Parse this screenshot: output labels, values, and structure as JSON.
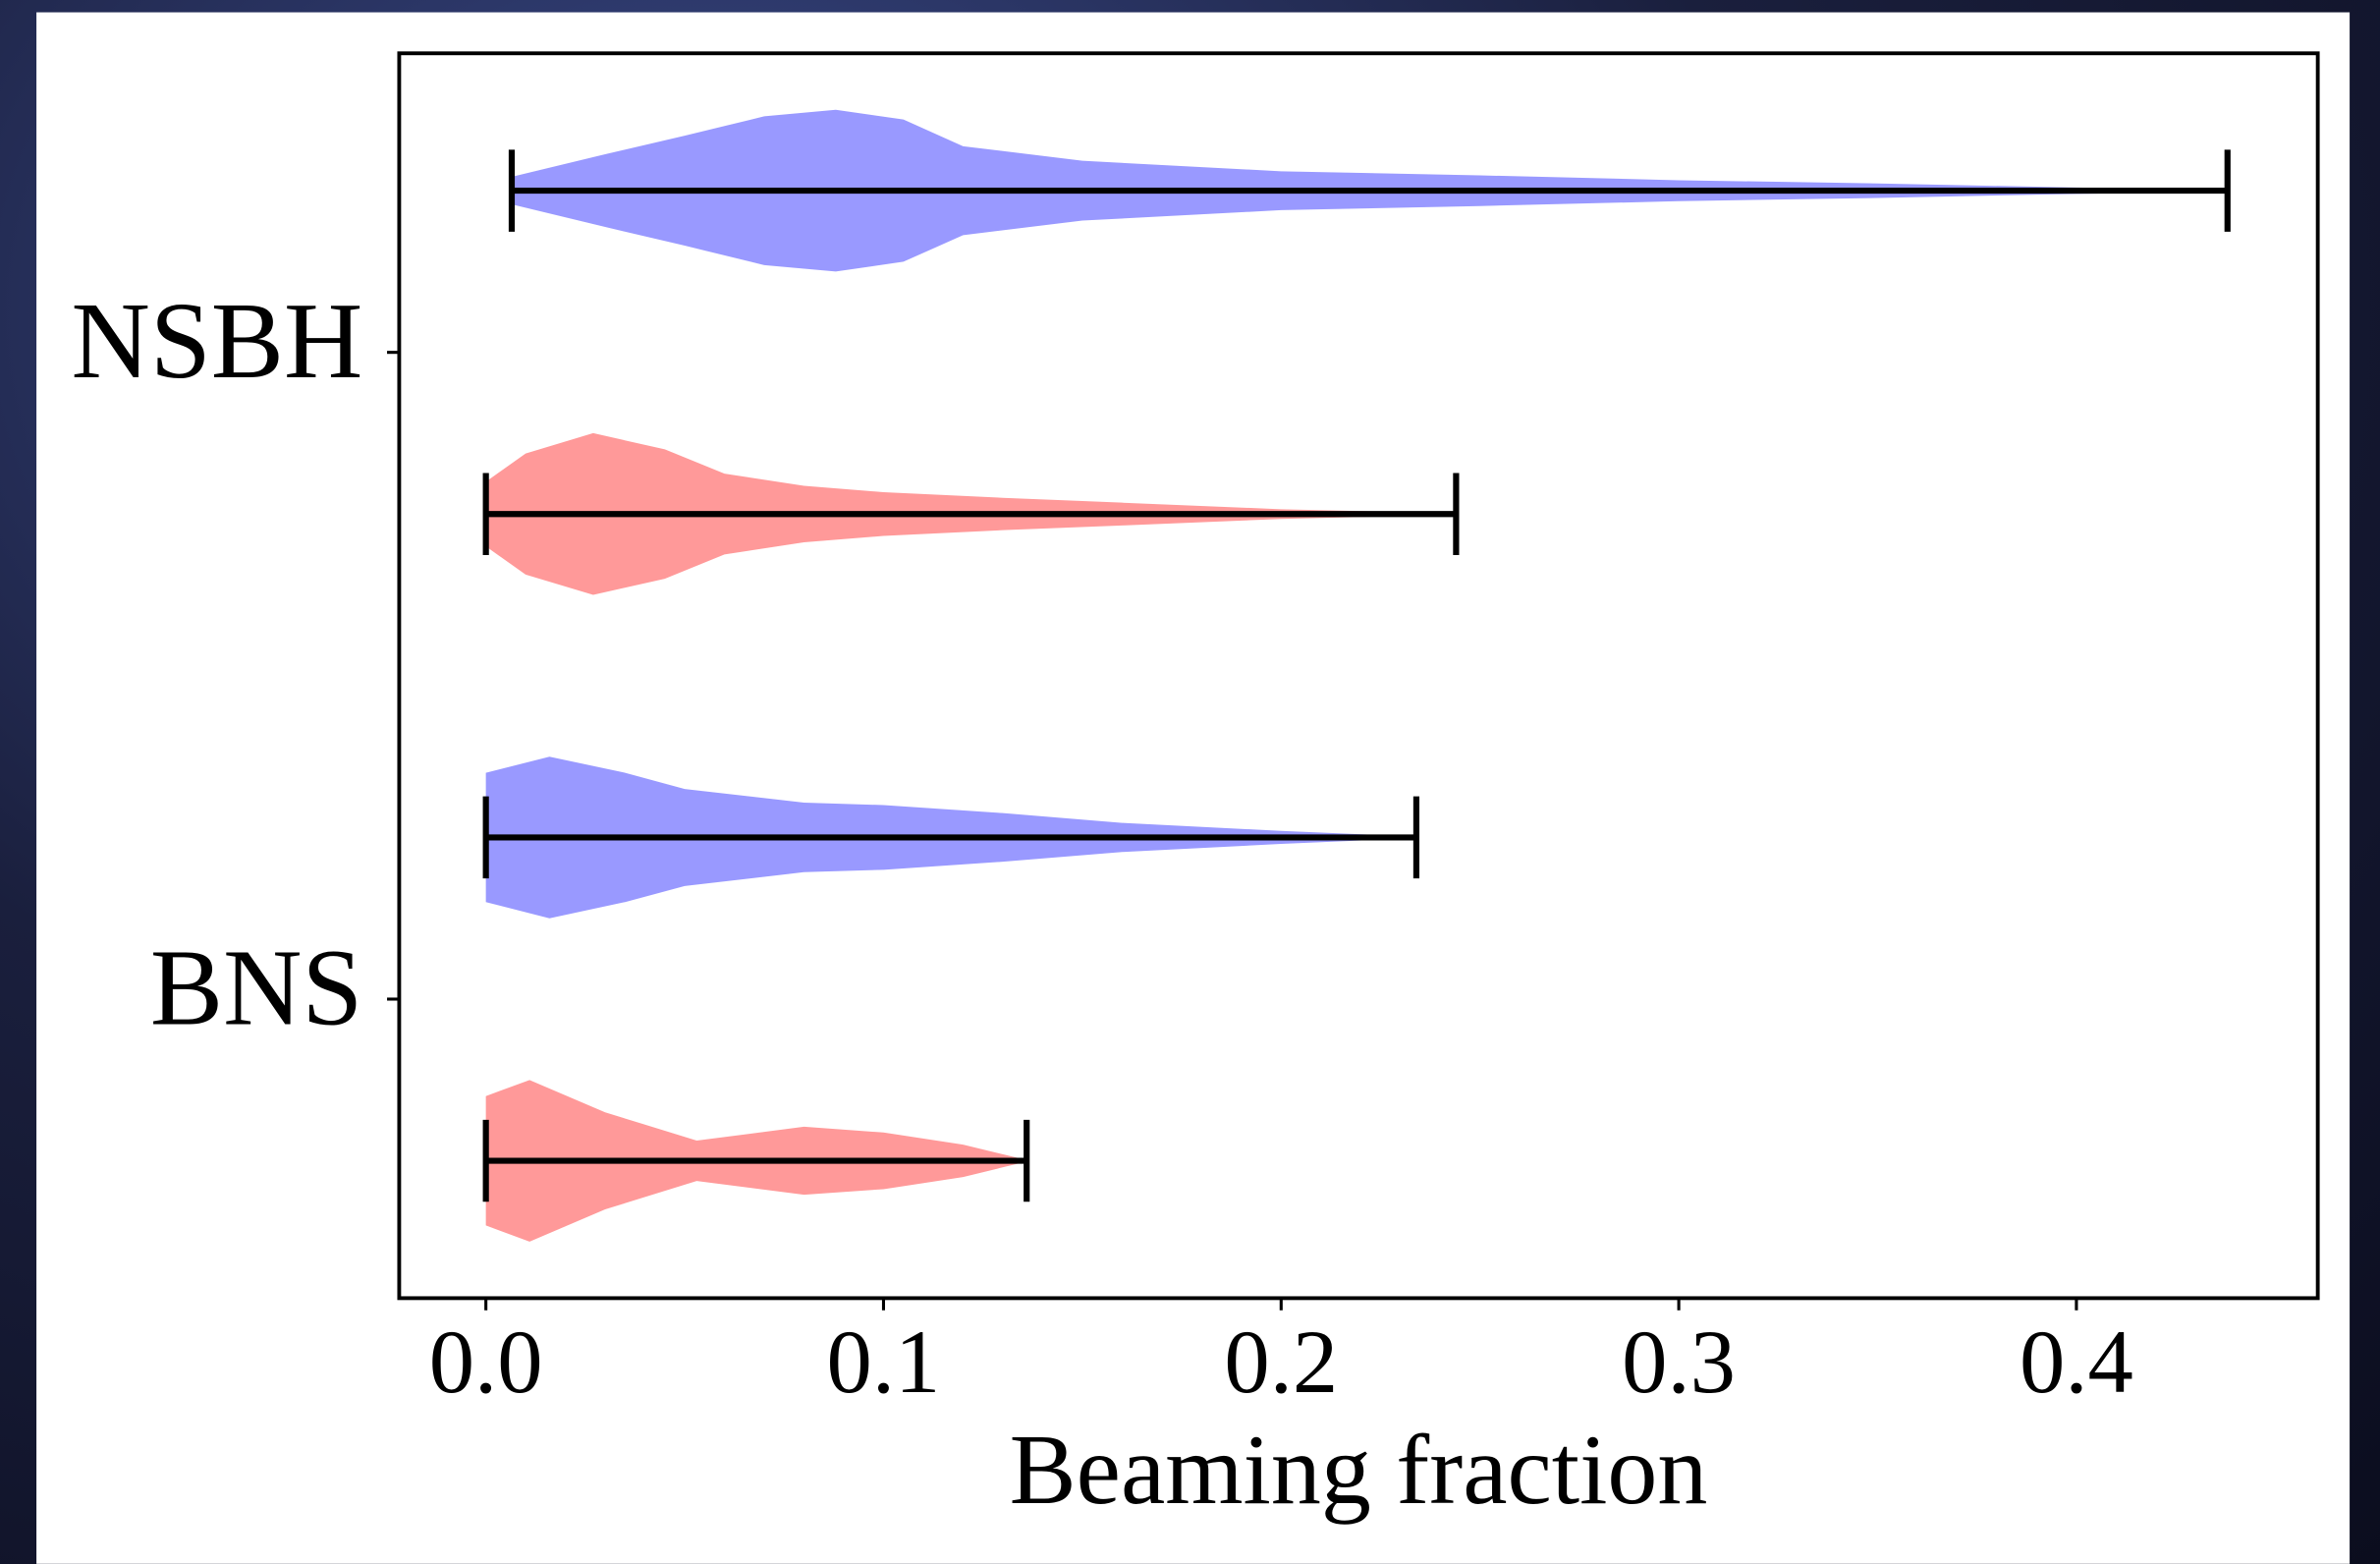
{
  "chart_data": {
    "type": "violin",
    "xlabel": "Beaming fraction",
    "xlim": [
      -0.0218,
      0.4607
    ],
    "xticks": [
      {
        "value": 0,
        "label": "0.0"
      },
      0.1,
      0.2,
      0.3,
      0.4
    ],
    "ylim": [
      0.5376,
      2.4624
    ],
    "yticks": [
      {
        "value": 1,
        "label": "BNS"
      },
      {
        "value": 2,
        "label": "NSBH"
      }
    ],
    "series": [
      {
        "color": "#9999ff",
        "violins": [
          {
            "min": 0,
            "max": 0.234,
            "x": [
              0,
              0.016,
              0.035,
              0.05,
              0.08,
              0.1,
              0.13,
              0.16,
              0.2,
              0.234
            ],
            "density": [
              0.8,
              1,
              0.8,
              0.6,
              0.43,
              0.4,
              0.3,
              0.18,
              0.08,
              0.01
            ]
          },
          {
            "min": 0.0065,
            "max": 0.438,
            "x": [
              0.0065,
              0.03,
              0.05,
              0.07,
              0.088,
              0.105,
              0.12,
              0.15,
              0.2,
              0.25,
              0.3,
              0.35,
              0.4,
              0.438
            ],
            "density": [
              0.17,
              0.45,
              0.68,
              0.92,
              1,
              0.88,
              0.55,
              0.37,
              0.24,
              0.19,
              0.13,
              0.09,
              0.04,
              0.01
            ]
          }
        ]
      },
      {
        "color": "#ff9999",
        "violins": [
          {
            "min": 0,
            "max": 0.136,
            "x": [
              0,
              0.011,
              0.03,
              0.053,
              0.08,
              0.1,
              0.12,
              0.136
            ],
            "density": [
              0.8,
              1,
              0.6,
              0.25,
              0.42,
              0.35,
              0.2,
              0.01
            ]
          },
          {
            "min": 0,
            "max": 0.244,
            "x": [
              0,
              0.01,
              0.027,
              0.045,
              0.06,
              0.08,
              0.1,
              0.13,
              0.16,
              0.2,
              0.244
            ],
            "density": [
              0.4,
              0.75,
              1,
              0.8,
              0.5,
              0.35,
              0.27,
              0.2,
              0.14,
              0.06,
              0.01
            ]
          }
        ]
      }
    ]
  }
}
